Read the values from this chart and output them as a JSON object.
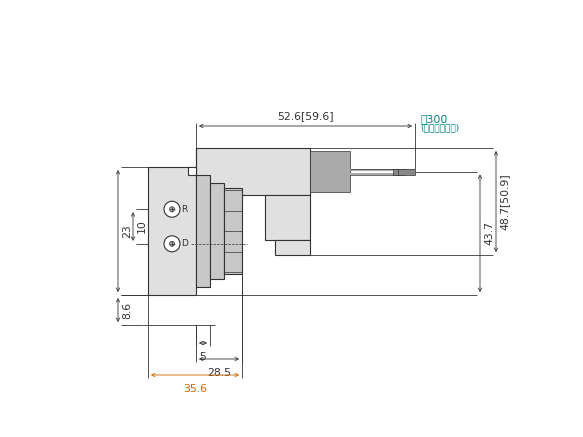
{
  "bg_color": "#ffffff",
  "line_color": "#333333",
  "dim_color": "#333333",
  "orange_color": "#cc6600",
  "teal_color": "#008080",
  "gray_light": "#e0e0e0",
  "gray_mid": "#c8c8c8",
  "gray_dark": "#aaaaaa",
  "dim_52_6": "52.6[59.6]",
  "dim_300": "約300",
  "dim_300_sub": "(リード線長さ)",
  "dim_43_7": "43.7",
  "dim_48_7": "48.7[50.9]",
  "dim_23": "23",
  "dim_10": "10",
  "dim_8_6": "8.6",
  "dim_5": "5",
  "dim_28_5": "28.5",
  "dim_35_6": "35.6",
  "label_R": "R",
  "label_D": "D"
}
